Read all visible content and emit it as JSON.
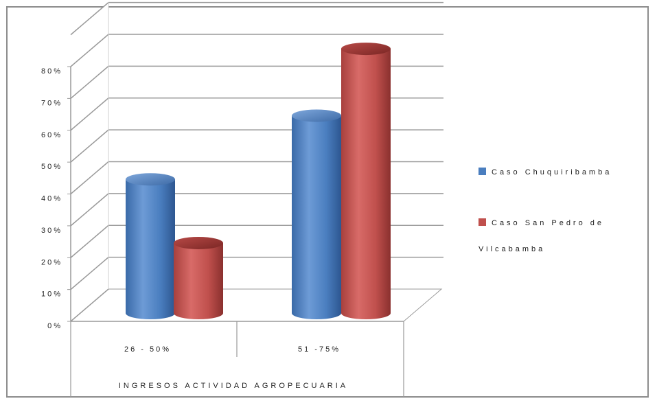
{
  "chart_data": {
    "type": "bar",
    "categories": [
      "26 - 50%",
      "51 -75%"
    ],
    "xlabel": "INGRESOS ACTIVIDAD AGROPECUARIA",
    "ylim": [
      0,
      80
    ],
    "y_ticks": [
      "0%",
      "10%",
      "20%",
      "30%",
      "40%",
      "50%",
      "60%",
      "70%",
      "80%"
    ],
    "grid": true,
    "legend_position": "right",
    "series": [
      {
        "name": "Caso Chuquiribamba",
        "color": "#4a7ebf",
        "values": [
          42,
          62
        ]
      },
      {
        "name": "Caso San Pedro de Vilcabamba",
        "color": "#c0504d",
        "values": [
          22,
          83
        ]
      }
    ],
    "legend_lines": [
      [
        "Caso Chuquiribamba"
      ],
      [
        "Caso San Pedro de",
        "Vilcabamba"
      ]
    ]
  }
}
